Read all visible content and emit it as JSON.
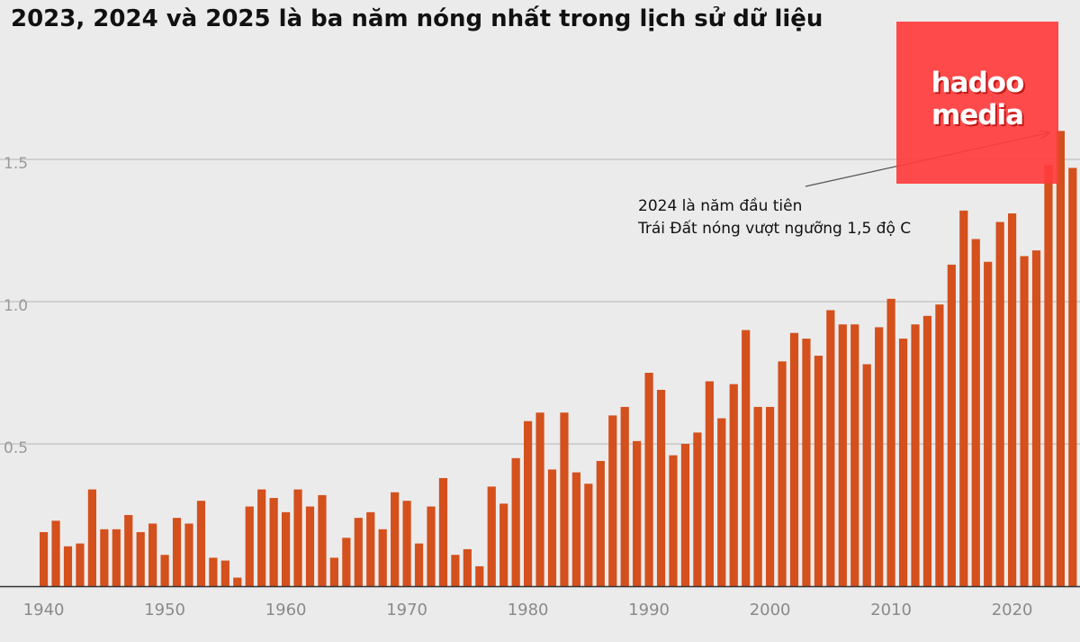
{
  "chart_data": {
    "type": "bar",
    "title": "2023, 2024 và 2025 là ba năm nóng nhất trong lịch sử dữ liệu",
    "x": [
      1940,
      1941,
      1942,
      1943,
      1944,
      1945,
      1946,
      1947,
      1948,
      1949,
      1950,
      1951,
      1952,
      1953,
      1954,
      1955,
      1956,
      1957,
      1958,
      1959,
      1960,
      1961,
      1962,
      1963,
      1964,
      1965,
      1966,
      1967,
      1968,
      1969,
      1970,
      1971,
      1972,
      1973,
      1974,
      1975,
      1976,
      1977,
      1978,
      1979,
      1980,
      1981,
      1982,
      1983,
      1984,
      1985,
      1986,
      1987,
      1988,
      1989,
      1990,
      1991,
      1992,
      1993,
      1994,
      1995,
      1996,
      1997,
      1998,
      1999,
      2000,
      2001,
      2002,
      2003,
      2004,
      2005,
      2006,
      2007,
      2008,
      2009,
      2010,
      2011,
      2012,
      2013,
      2014,
      2015,
      2016,
      2017,
      2018,
      2019,
      2020,
      2021,
      2022,
      2023,
      2024,
      2025
    ],
    "values": [
      0.19,
      0.23,
      0.14,
      0.15,
      0.34,
      0.2,
      0.2,
      0.25,
      0.19,
      0.22,
      0.11,
      0.24,
      0.22,
      0.3,
      0.1,
      0.09,
      0.03,
      0.28,
      0.34,
      0.31,
      0.26,
      0.34,
      0.28,
      0.32,
      0.1,
      0.17,
      0.24,
      0.26,
      0.2,
      0.33,
      0.3,
      0.15,
      0.28,
      0.38,
      0.11,
      0.13,
      0.07,
      0.35,
      0.29,
      0.45,
      0.58,
      0.61,
      0.41,
      0.61,
      0.4,
      0.36,
      0.44,
      0.6,
      0.63,
      0.51,
      0.75,
      0.69,
      0.46,
      0.5,
      0.54,
      0.72,
      0.59,
      0.71,
      0.9,
      0.63,
      0.63,
      0.79,
      0.89,
      0.87,
      0.81,
      0.97,
      0.92,
      0.92,
      0.78,
      0.91,
      1.01,
      0.87,
      0.92,
      0.95,
      0.99,
      1.13,
      1.32,
      1.22,
      1.14,
      1.28,
      1.31,
      1.16,
      1.18,
      1.48,
      1.6,
      1.47
    ],
    "y_ticks": [
      "0.5",
      "1.0",
      "1.5"
    ],
    "x_ticks": [
      "1940",
      "1950",
      "1960",
      "1970",
      "1980",
      "1990",
      "2000",
      "2010",
      "2020"
    ],
    "ylim": [
      0,
      1.65
    ],
    "grid": true,
    "annotation": {
      "lines": [
        "2024 là năm đầu tiên",
        "Trái Đất nóng vượt ngưỡng 1,5 độ C"
      ],
      "target_year": 2024
    },
    "colors": {
      "bar": "#d4501d",
      "grid": "#b5b5b5",
      "axis": "#333333"
    }
  },
  "logo": {
    "line1": "hadoo",
    "line2": "media"
  }
}
